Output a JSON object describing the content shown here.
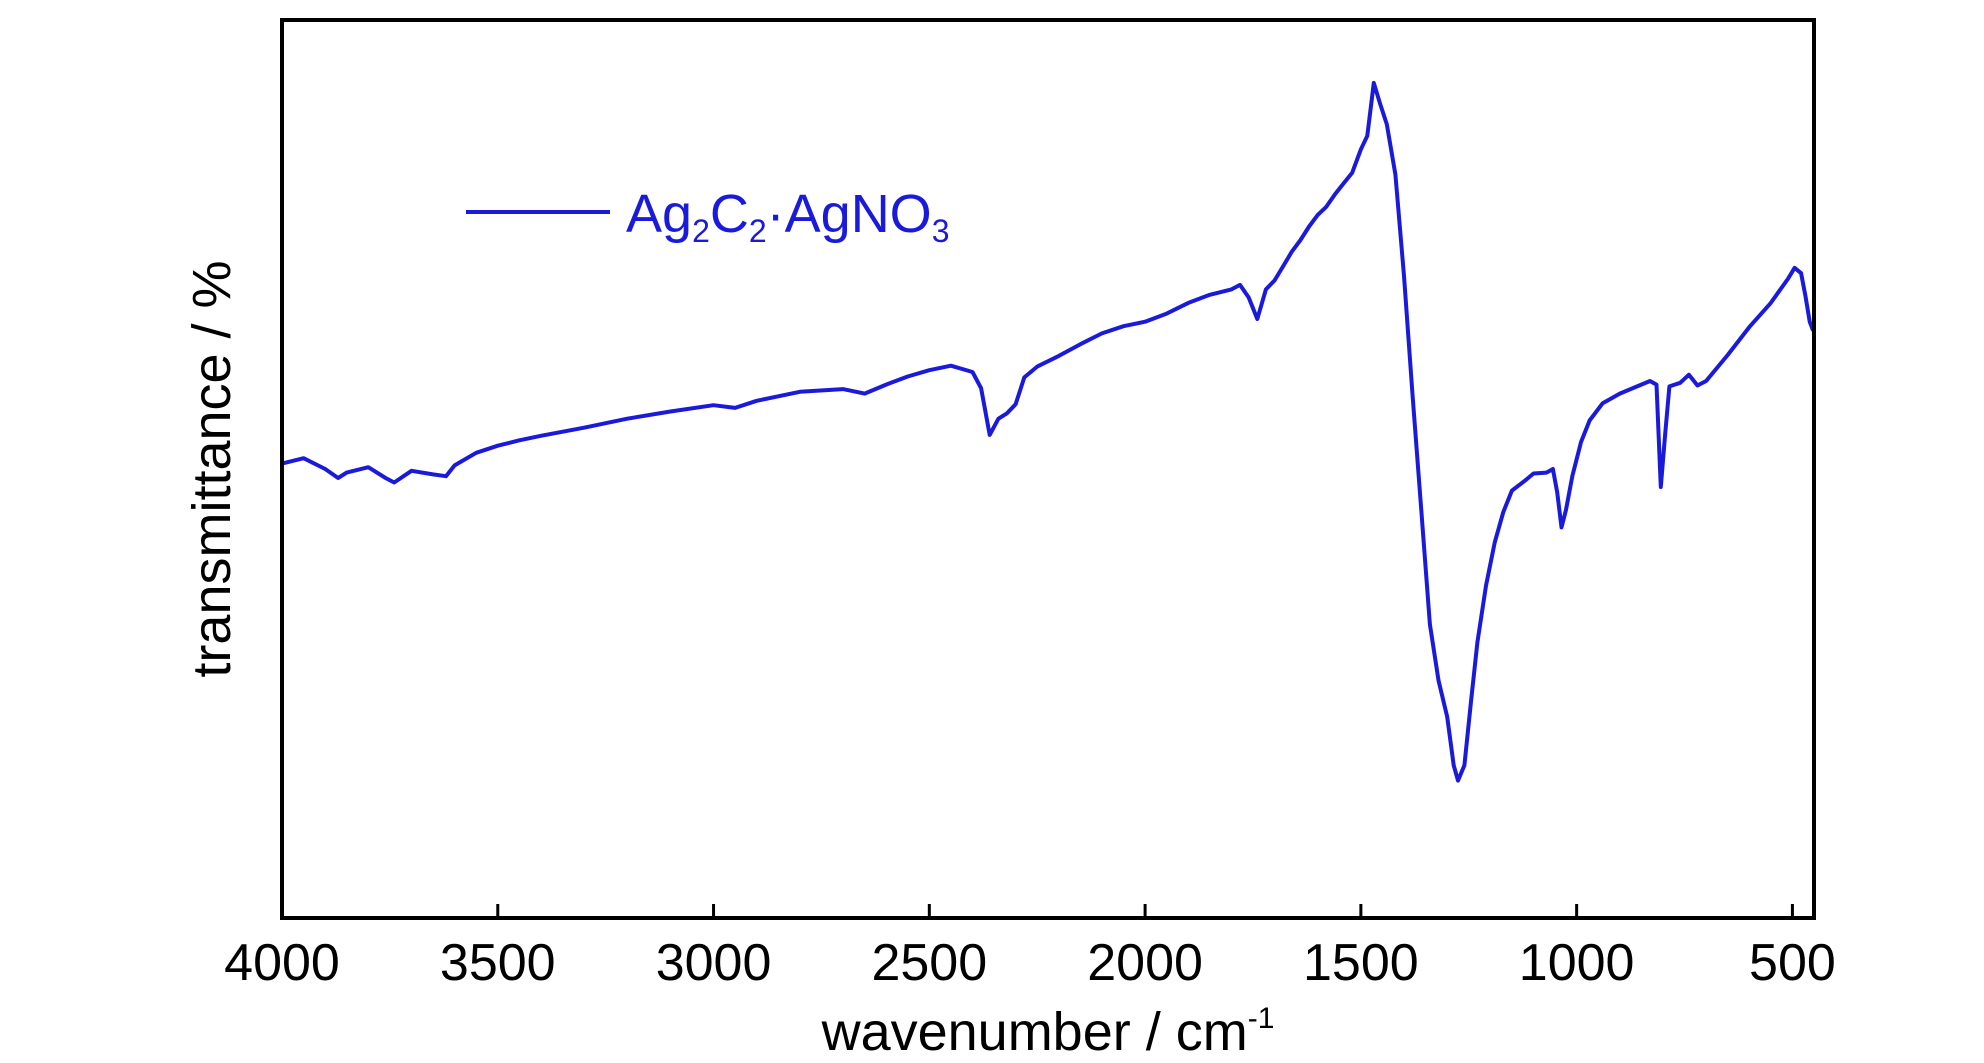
{
  "chart_data": {
    "type": "line",
    "title": "",
    "xlabel": "wavenumber / cm",
    "xlabel_sup": "-1",
    "ylabel": "transmittance / %",
    "x_reversed": true,
    "xlim": [
      4000,
      450
    ],
    "ylim": [
      0,
      100
    ],
    "y_ticks_shown": false,
    "x_ticks": [
      4000,
      3500,
      3000,
      2500,
      2000,
      1500,
      1000,
      500
    ],
    "x_tick_labels": [
      "4000",
      "3500",
      "3000",
      "2500",
      "2000",
      "1500",
      "1000",
      "500"
    ],
    "grid": false,
    "legend_position": "top-left",
    "series": [
      {
        "name": "Ag2C2·AgNO3",
        "name_parts": [
          {
            "text": "Ag",
            "sub": false
          },
          {
            "text": "2",
            "sub": true
          },
          {
            "text": "C",
            "sub": false
          },
          {
            "text": "2",
            "sub": true
          },
          {
            "text": "·AgNO",
            "sub": false
          },
          {
            "text": "3",
            "sub": true
          }
        ],
        "color": "#1a1adb",
        "points": [
          [
            4000,
            50.6
          ],
          [
            3950,
            51.2
          ],
          [
            3900,
            50.0
          ],
          [
            3870,
            49.0
          ],
          [
            3850,
            49.6
          ],
          [
            3800,
            50.2
          ],
          [
            3760,
            49.0
          ],
          [
            3740,
            48.5
          ],
          [
            3700,
            49.8
          ],
          [
            3650,
            49.4
          ],
          [
            3620,
            49.2
          ],
          [
            3600,
            50.4
          ],
          [
            3550,
            51.8
          ],
          [
            3500,
            52.6
          ],
          [
            3450,
            53.2
          ],
          [
            3400,
            53.7
          ],
          [
            3300,
            54.6
          ],
          [
            3200,
            55.6
          ],
          [
            3100,
            56.4
          ],
          [
            3000,
            57.1
          ],
          [
            2950,
            56.8
          ],
          [
            2900,
            57.6
          ],
          [
            2800,
            58.6
          ],
          [
            2700,
            58.9
          ],
          [
            2650,
            58.4
          ],
          [
            2600,
            59.4
          ],
          [
            2550,
            60.3
          ],
          [
            2500,
            61.0
          ],
          [
            2450,
            61.5
          ],
          [
            2400,
            60.8
          ],
          [
            2380,
            59.0
          ],
          [
            2360,
            53.8
          ],
          [
            2340,
            55.6
          ],
          [
            2320,
            56.2
          ],
          [
            2300,
            57.2
          ],
          [
            2280,
            60.2
          ],
          [
            2250,
            61.4
          ],
          [
            2200,
            62.6
          ],
          [
            2150,
            63.9
          ],
          [
            2100,
            65.1
          ],
          [
            2050,
            65.9
          ],
          [
            2000,
            66.4
          ],
          [
            1950,
            67.3
          ],
          [
            1900,
            68.5
          ],
          [
            1850,
            69.4
          ],
          [
            1800,
            70.0
          ],
          [
            1780,
            70.5
          ],
          [
            1760,
            69.1
          ],
          [
            1740,
            66.7
          ],
          [
            1720,
            70.0
          ],
          [
            1700,
            71.0
          ],
          [
            1680,
            72.6
          ],
          [
            1660,
            74.2
          ],
          [
            1640,
            75.5
          ],
          [
            1620,
            77.0
          ],
          [
            1600,
            78.3
          ],
          [
            1580,
            79.2
          ],
          [
            1560,
            80.6
          ],
          [
            1540,
            81.8
          ],
          [
            1520,
            83.0
          ],
          [
            1500,
            85.6
          ],
          [
            1485,
            87.1
          ],
          [
            1470,
            93.0
          ],
          [
            1455,
            90.6
          ],
          [
            1440,
            88.4
          ],
          [
            1420,
            82.8
          ],
          [
            1400,
            71.5
          ],
          [
            1380,
            58.0
          ],
          [
            1360,
            45.4
          ],
          [
            1340,
            32.7
          ],
          [
            1320,
            26.4
          ],
          [
            1300,
            22.4
          ],
          [
            1285,
            17.0
          ],
          [
            1275,
            15.3
          ],
          [
            1260,
            17.0
          ],
          [
            1245,
            24.0
          ],
          [
            1230,
            30.7
          ],
          [
            1210,
            37.0
          ],
          [
            1190,
            41.8
          ],
          [
            1170,
            45.2
          ],
          [
            1150,
            47.6
          ],
          [
            1120,
            48.7
          ],
          [
            1100,
            49.5
          ],
          [
            1070,
            49.6
          ],
          [
            1055,
            50.0
          ],
          [
            1045,
            47.4
          ],
          [
            1035,
            43.5
          ],
          [
            1025,
            45.4
          ],
          [
            1010,
            49.2
          ],
          [
            990,
            53.0
          ],
          [
            970,
            55.4
          ],
          [
            940,
            57.3
          ],
          [
            900,
            58.4
          ],
          [
            860,
            59.2
          ],
          [
            830,
            59.8
          ],
          [
            815,
            59.4
          ],
          [
            805,
            48.0
          ],
          [
            795,
            53.8
          ],
          [
            785,
            59.2
          ],
          [
            760,
            59.6
          ],
          [
            740,
            60.5
          ],
          [
            720,
            59.3
          ],
          [
            700,
            59.8
          ],
          [
            650,
            62.7
          ],
          [
            600,
            65.8
          ],
          [
            550,
            68.5
          ],
          [
            510,
            71.2
          ],
          [
            495,
            72.4
          ],
          [
            480,
            71.8
          ],
          [
            470,
            69.3
          ],
          [
            460,
            66.4
          ],
          [
            452,
            65.4
          ]
        ]
      }
    ]
  }
}
